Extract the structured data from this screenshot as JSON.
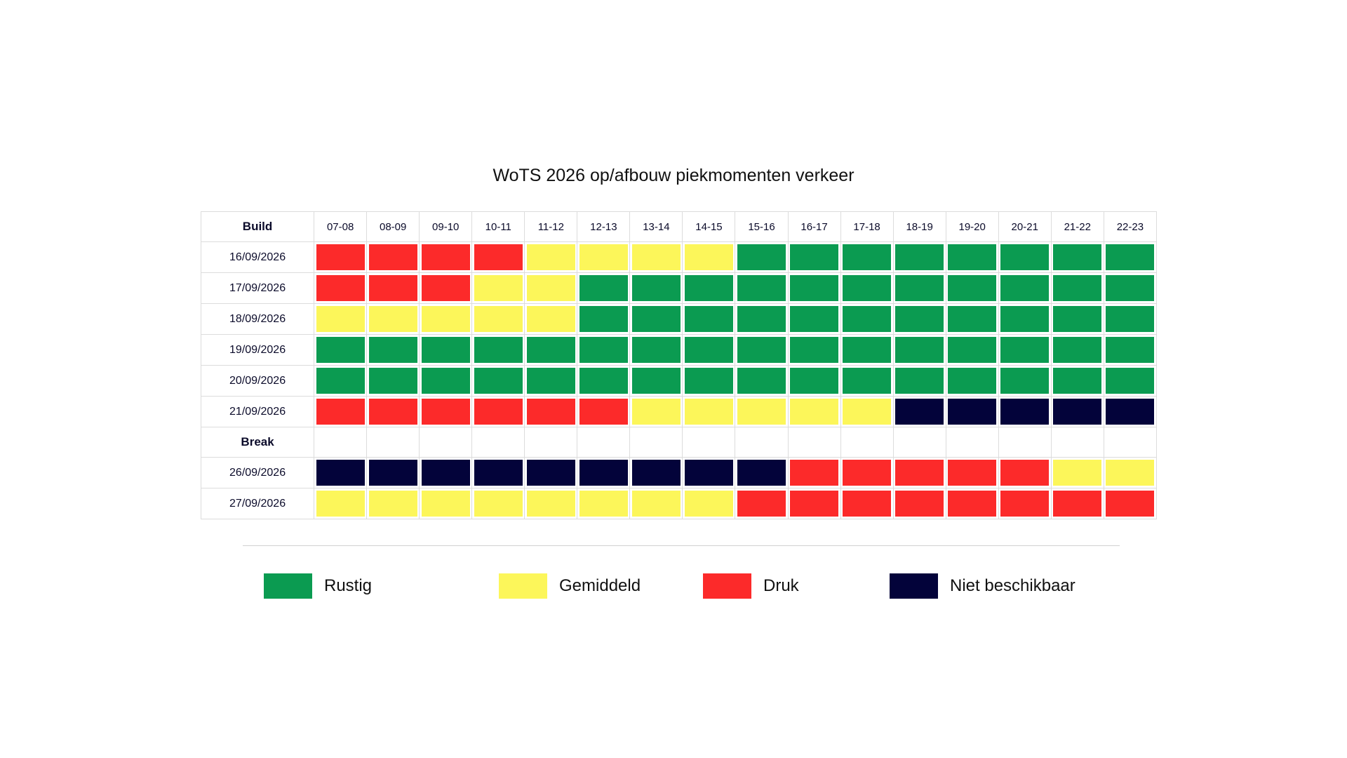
{
  "chart_data": {
    "type": "heatmap",
    "title": "WoTS 2026 op/afbouw piekmomenten verkeer",
    "corner_label": "Build",
    "columns": [
      "07-08",
      "08-09",
      "09-10",
      "10-11",
      "11-12",
      "12-13",
      "13-14",
      "14-15",
      "15-16",
      "16-17",
      "17-18",
      "18-19",
      "19-20",
      "20-21",
      "21-22",
      "22-23"
    ],
    "rows": [
      {
        "label": "16/09/2026",
        "bold": false,
        "values": [
          "druk",
          "druk",
          "druk",
          "druk",
          "gemiddeld",
          "gemiddeld",
          "gemiddeld",
          "gemiddeld",
          "rustig",
          "rustig",
          "rustig",
          "rustig",
          "rustig",
          "rustig",
          "rustig",
          "rustig"
        ]
      },
      {
        "label": "17/09/2026",
        "bold": false,
        "values": [
          "druk",
          "druk",
          "druk",
          "gemiddeld",
          "gemiddeld",
          "rustig",
          "rustig",
          "rustig",
          "rustig",
          "rustig",
          "rustig",
          "rustig",
          "rustig",
          "rustig",
          "rustig",
          "rustig"
        ]
      },
      {
        "label": "18/09/2026",
        "bold": false,
        "values": [
          "gemiddeld",
          "gemiddeld",
          "gemiddeld",
          "gemiddeld",
          "gemiddeld",
          "rustig",
          "rustig",
          "rustig",
          "rustig",
          "rustig",
          "rustig",
          "rustig",
          "rustig",
          "rustig",
          "rustig",
          "rustig"
        ]
      },
      {
        "label": "19/09/2026",
        "bold": false,
        "values": [
          "rustig",
          "rustig",
          "rustig",
          "rustig",
          "rustig",
          "rustig",
          "rustig",
          "rustig",
          "rustig",
          "rustig",
          "rustig",
          "rustig",
          "rustig",
          "rustig",
          "rustig",
          "rustig"
        ]
      },
      {
        "label": "20/09/2026",
        "bold": false,
        "values": [
          "rustig",
          "rustig",
          "rustig",
          "rustig",
          "rustig",
          "rustig",
          "rustig",
          "rustig",
          "rustig",
          "rustig",
          "rustig",
          "rustig",
          "rustig",
          "rustig",
          "rustig",
          "rustig"
        ]
      },
      {
        "label": "21/09/2026",
        "bold": false,
        "values": [
          "druk",
          "druk",
          "druk",
          "druk",
          "druk",
          "druk",
          "gemiddeld",
          "gemiddeld",
          "gemiddeld",
          "gemiddeld",
          "gemiddeld",
          "niet",
          "niet",
          "niet",
          "niet",
          "niet"
        ]
      },
      {
        "label": "Break",
        "bold": true,
        "values": [
          "",
          "",
          "",
          "",
          "",
          "",
          "",
          "",
          "",
          "",
          "",
          "",
          "",
          "",
          "",
          ""
        ]
      },
      {
        "label": "26/09/2026",
        "bold": false,
        "values": [
          "niet",
          "niet",
          "niet",
          "niet",
          "niet",
          "niet",
          "niet",
          "niet",
          "niet",
          "druk",
          "druk",
          "druk",
          "druk",
          "druk",
          "gemiddeld",
          "gemiddeld"
        ]
      },
      {
        "label": "27/09/2026",
        "bold": false,
        "values": [
          "gemiddeld",
          "gemiddeld",
          "gemiddeld",
          "gemiddeld",
          "gemiddeld",
          "gemiddeld",
          "gemiddeld",
          "gemiddeld",
          "druk",
          "druk",
          "druk",
          "druk",
          "druk",
          "druk",
          "druk",
          "druk"
        ]
      }
    ],
    "legend": [
      {
        "key": "rustig",
        "label": "Rustig",
        "color": "#0b9b51"
      },
      {
        "key": "gemiddeld",
        "label": "Gemiddeld",
        "color": "#fcf65a"
      },
      {
        "key": "druk",
        "label": "Druk",
        "color": "#fc2a2a"
      },
      {
        "key": "niet",
        "label": "Niet beschikbaar",
        "color": "#03033a"
      }
    ]
  }
}
